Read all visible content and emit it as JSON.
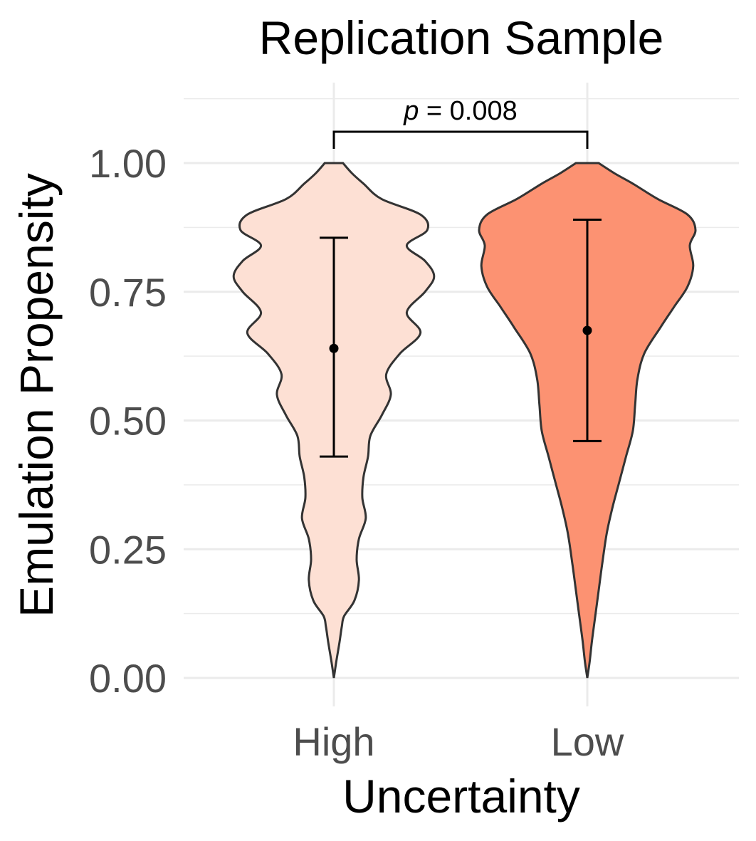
{
  "chart_data": {
    "type": "violin",
    "title": "Replication Sample",
    "xlabel": "Uncertainty",
    "ylabel": "Emulation Propensity",
    "categories": [
      "High",
      "Low"
    ],
    "ylim": [
      0,
      1
    ],
    "y_ticks": [
      "0.00",
      "0.25",
      "0.50",
      "0.75",
      "1.00"
    ],
    "grid": true,
    "series": [
      {
        "category": "High",
        "color": "#fde0d4",
        "mean": 0.64,
        "error_low": 0.43,
        "error_high": 0.855,
        "density_profile": [
          [
            0.0,
            0.0
          ],
          [
            0.03,
            0.02
          ],
          [
            0.07,
            0.05
          ],
          [
            0.1,
            0.07
          ],
          [
            0.12,
            0.09
          ],
          [
            0.15,
            0.18
          ],
          [
            0.19,
            0.22
          ],
          [
            0.23,
            0.2
          ],
          [
            0.27,
            0.22
          ],
          [
            0.31,
            0.28
          ],
          [
            0.35,
            0.25
          ],
          [
            0.39,
            0.26
          ],
          [
            0.43,
            0.3
          ],
          [
            0.47,
            0.32
          ],
          [
            0.51,
            0.42
          ],
          [
            0.55,
            0.5
          ],
          [
            0.59,
            0.46
          ],
          [
            0.63,
            0.58
          ],
          [
            0.67,
            0.76
          ],
          [
            0.71,
            0.64
          ],
          [
            0.75,
            0.8
          ],
          [
            0.78,
            0.88
          ],
          [
            0.81,
            0.8
          ],
          [
            0.84,
            0.64
          ],
          [
            0.87,
            0.82
          ],
          [
            0.9,
            0.76
          ],
          [
            0.93,
            0.42
          ],
          [
            0.96,
            0.26
          ],
          [
            0.98,
            0.16
          ],
          [
            1.0,
            0.08
          ]
        ]
      },
      {
        "category": "Low",
        "color": "#fc9272",
        "mean": 0.675,
        "error_low": 0.46,
        "error_high": 0.89,
        "density_profile": [
          [
            0.0,
            0.0
          ],
          [
            0.03,
            0.02
          ],
          [
            0.07,
            0.04
          ],
          [
            0.12,
            0.07
          ],
          [
            0.17,
            0.1
          ],
          [
            0.22,
            0.13
          ],
          [
            0.28,
            0.17
          ],
          [
            0.33,
            0.22
          ],
          [
            0.38,
            0.28
          ],
          [
            0.43,
            0.34
          ],
          [
            0.48,
            0.4
          ],
          [
            0.53,
            0.42
          ],
          [
            0.58,
            0.44
          ],
          [
            0.63,
            0.5
          ],
          [
            0.68,
            0.64
          ],
          [
            0.72,
            0.76
          ],
          [
            0.76,
            0.88
          ],
          [
            0.8,
            0.93
          ],
          [
            0.84,
            0.9
          ],
          [
            0.87,
            0.95
          ],
          [
            0.9,
            0.88
          ],
          [
            0.93,
            0.62
          ],
          [
            0.96,
            0.4
          ],
          [
            0.98,
            0.24
          ],
          [
            1.0,
            0.1
          ]
        ]
      }
    ],
    "annotation": {
      "p_symbol": "p",
      "p_text": " = 0.008",
      "between": [
        "High",
        "Low"
      ]
    }
  }
}
